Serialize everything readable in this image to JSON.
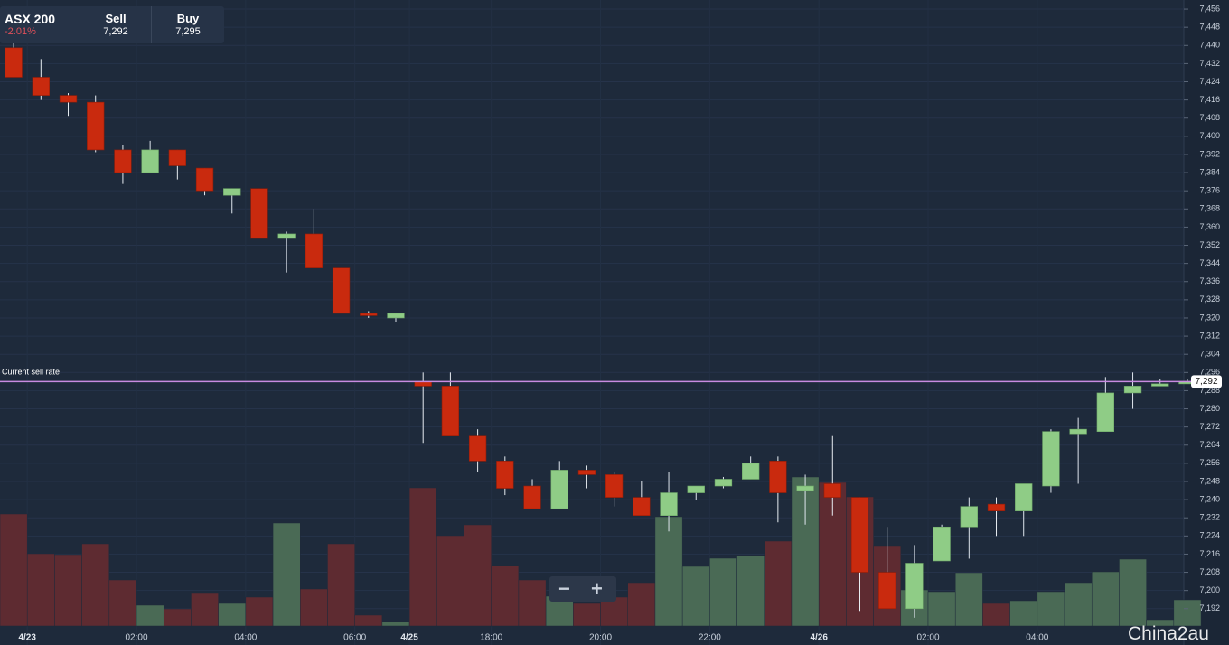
{
  "header": {
    "instrument": "ASX 200",
    "change": "-2.01%",
    "sell_label": "Sell",
    "sell": "7,292",
    "buy_label": "Buy",
    "buy": "7,295"
  },
  "watermark": "China2au",
  "chart_data": {
    "type": "candlestick",
    "open": [
      7439,
      7426,
      7418,
      7415,
      7394,
      7384,
      7394,
      7386,
      7374,
      7377,
      7355,
      7357,
      7342,
      7322,
      7320,
      7292,
      7290,
      7268,
      7257,
      7246,
      7236,
      7253,
      7251,
      7241,
      7233,
      7243,
      7246,
      7249,
      7257,
      7244,
      7247,
      7241,
      7208,
      7192,
      7213,
      7228,
      7238,
      7235,
      7246,
      7269,
      7270,
      7287,
      7290,
      7291
    ],
    "high": [
      7441,
      7434,
      7419,
      7418,
      7396,
      7398,
      7394,
      7386,
      7377,
      7377,
      7358,
      7368,
      7342,
      7323,
      7322,
      7296,
      7296,
      7271,
      7259,
      7249,
      7257,
      7255,
      7252,
      7248,
      7252,
      7246,
      7250,
      7259,
      7259,
      7251,
      7268,
      7241,
      7228,
      7220,
      7229,
      7241,
      7241,
      7247,
      7271,
      7276,
      7294,
      7296,
      7293,
      7293
    ],
    "low": [
      7426,
      7416,
      7409,
      7393,
      7379,
      7384,
      7381,
      7374,
      7366,
      7355,
      7340,
      7342,
      7322,
      7320,
      7318,
      7265,
      7268,
      7252,
      7242,
      7236,
      7236,
      7245,
      7237,
      7233,
      7226,
      7240,
      7245,
      7249,
      7230,
      7229,
      7233,
      7191,
      7192,
      7188,
      7213,
      7214,
      7224,
      7224,
      7243,
      7247,
      7270,
      7280,
      7290,
      7291
    ],
    "close": [
      7426,
      7418,
      7415,
      7394,
      7384,
      7394,
      7387,
      7376,
      7377,
      7355,
      7357,
      7342,
      7322,
      7321,
      7322,
      7290,
      7268,
      7257,
      7245,
      7236,
      7253,
      7251,
      7241,
      7233,
      7243,
      7246,
      7249,
      7256,
      7243,
      7246,
      7241,
      7208,
      7192,
      7212,
      7228,
      7237,
      7235,
      7247,
      7270,
      7271,
      7287,
      7290,
      7291,
      7292
    ],
    "volume": [
      124,
      80,
      79,
      91,
      51,
      23,
      19,
      37,
      25,
      32,
      114,
      41,
      91,
      12,
      5,
      153,
      100,
      112,
      67,
      51,
      33,
      25,
      32,
      48,
      121,
      66,
      75,
      78,
      94,
      165,
      159,
      143,
      89,
      40,
      38,
      59,
      25,
      28,
      38,
      48,
      60,
      74,
      7,
      29
    ],
    "up_color": "#8fcc86",
    "down_color": "#c92a0e",
    "volume_up_color": "#4a6a55",
    "volume_down_color": "#5e2b31",
    "xlim": [
      -0.5,
      43.2
    ],
    "xticks": [
      {
        "value": 0.5,
        "label": "4/23"
      },
      {
        "value": 4.5,
        "label": "02:00"
      },
      {
        "value": 8.5,
        "label": "04:00"
      },
      {
        "value": 12.5,
        "label": "06:00"
      },
      {
        "value": 14.5,
        "label": "4/25"
      },
      {
        "value": 17.5,
        "label": "18:00"
      },
      {
        "value": 21.5,
        "label": "20:00"
      },
      {
        "value": 25.5,
        "label": "22:00"
      },
      {
        "value": 29.5,
        "label": "4/26"
      },
      {
        "value": 33.5,
        "label": "02:00"
      },
      {
        "value": 37.5,
        "label": "04:00"
      }
    ],
    "ylim": [
      7176,
      7460
    ],
    "yticks": [
      {
        "value": 7192,
        "label": "7,192"
      },
      {
        "value": 7200,
        "label": "7,200"
      },
      {
        "value": 7208,
        "label": "7,208"
      },
      {
        "value": 7216,
        "label": "7,216"
      },
      {
        "value": 7224,
        "label": "7,224"
      },
      {
        "value": 7232,
        "label": "7,232"
      },
      {
        "value": 7240,
        "label": "7,240"
      },
      {
        "value": 7248,
        "label": "7,248"
      },
      {
        "value": 7256,
        "label": "7,256"
      },
      {
        "value": 7264,
        "label": "7,264"
      },
      {
        "value": 7272,
        "label": "7,272"
      },
      {
        "value": 7280,
        "label": "7,280"
      },
      {
        "value": 7288,
        "label": "7,288"
      },
      {
        "value": 7296,
        "label": "7,296"
      },
      {
        "value": 7304,
        "label": "7,304"
      },
      {
        "value": 7312,
        "label": "7,312"
      },
      {
        "value": 7320,
        "label": "7,320"
      },
      {
        "value": 7328,
        "label": "7,328"
      },
      {
        "value": 7336,
        "label": "7,336"
      },
      {
        "value": 7344,
        "label": "7,344"
      },
      {
        "value": 7352,
        "label": "7,352"
      },
      {
        "value": 7360,
        "label": "7,360"
      },
      {
        "value": 7368,
        "label": "7,368"
      },
      {
        "value": 7376,
        "label": "7,376"
      },
      {
        "value": 7384,
        "label": "7,384"
      },
      {
        "value": 7392,
        "label": "7,392"
      },
      {
        "value": 7400,
        "label": "7,400"
      },
      {
        "value": 7408,
        "label": "7,408"
      },
      {
        "value": 7416,
        "label": "7,416"
      },
      {
        "value": 7424,
        "label": "7,424"
      },
      {
        "value": 7432,
        "label": "7,432"
      },
      {
        "value": 7440,
        "label": "7,440"
      },
      {
        "value": 7448,
        "label": "7,448"
      },
      {
        "value": 7456,
        "label": "7,456"
      }
    ],
    "grid": true,
    "current": {
      "label": "Current sell rate",
      "value": 7292,
      "value_label": "7,292",
      "color": "#c88be0"
    }
  }
}
